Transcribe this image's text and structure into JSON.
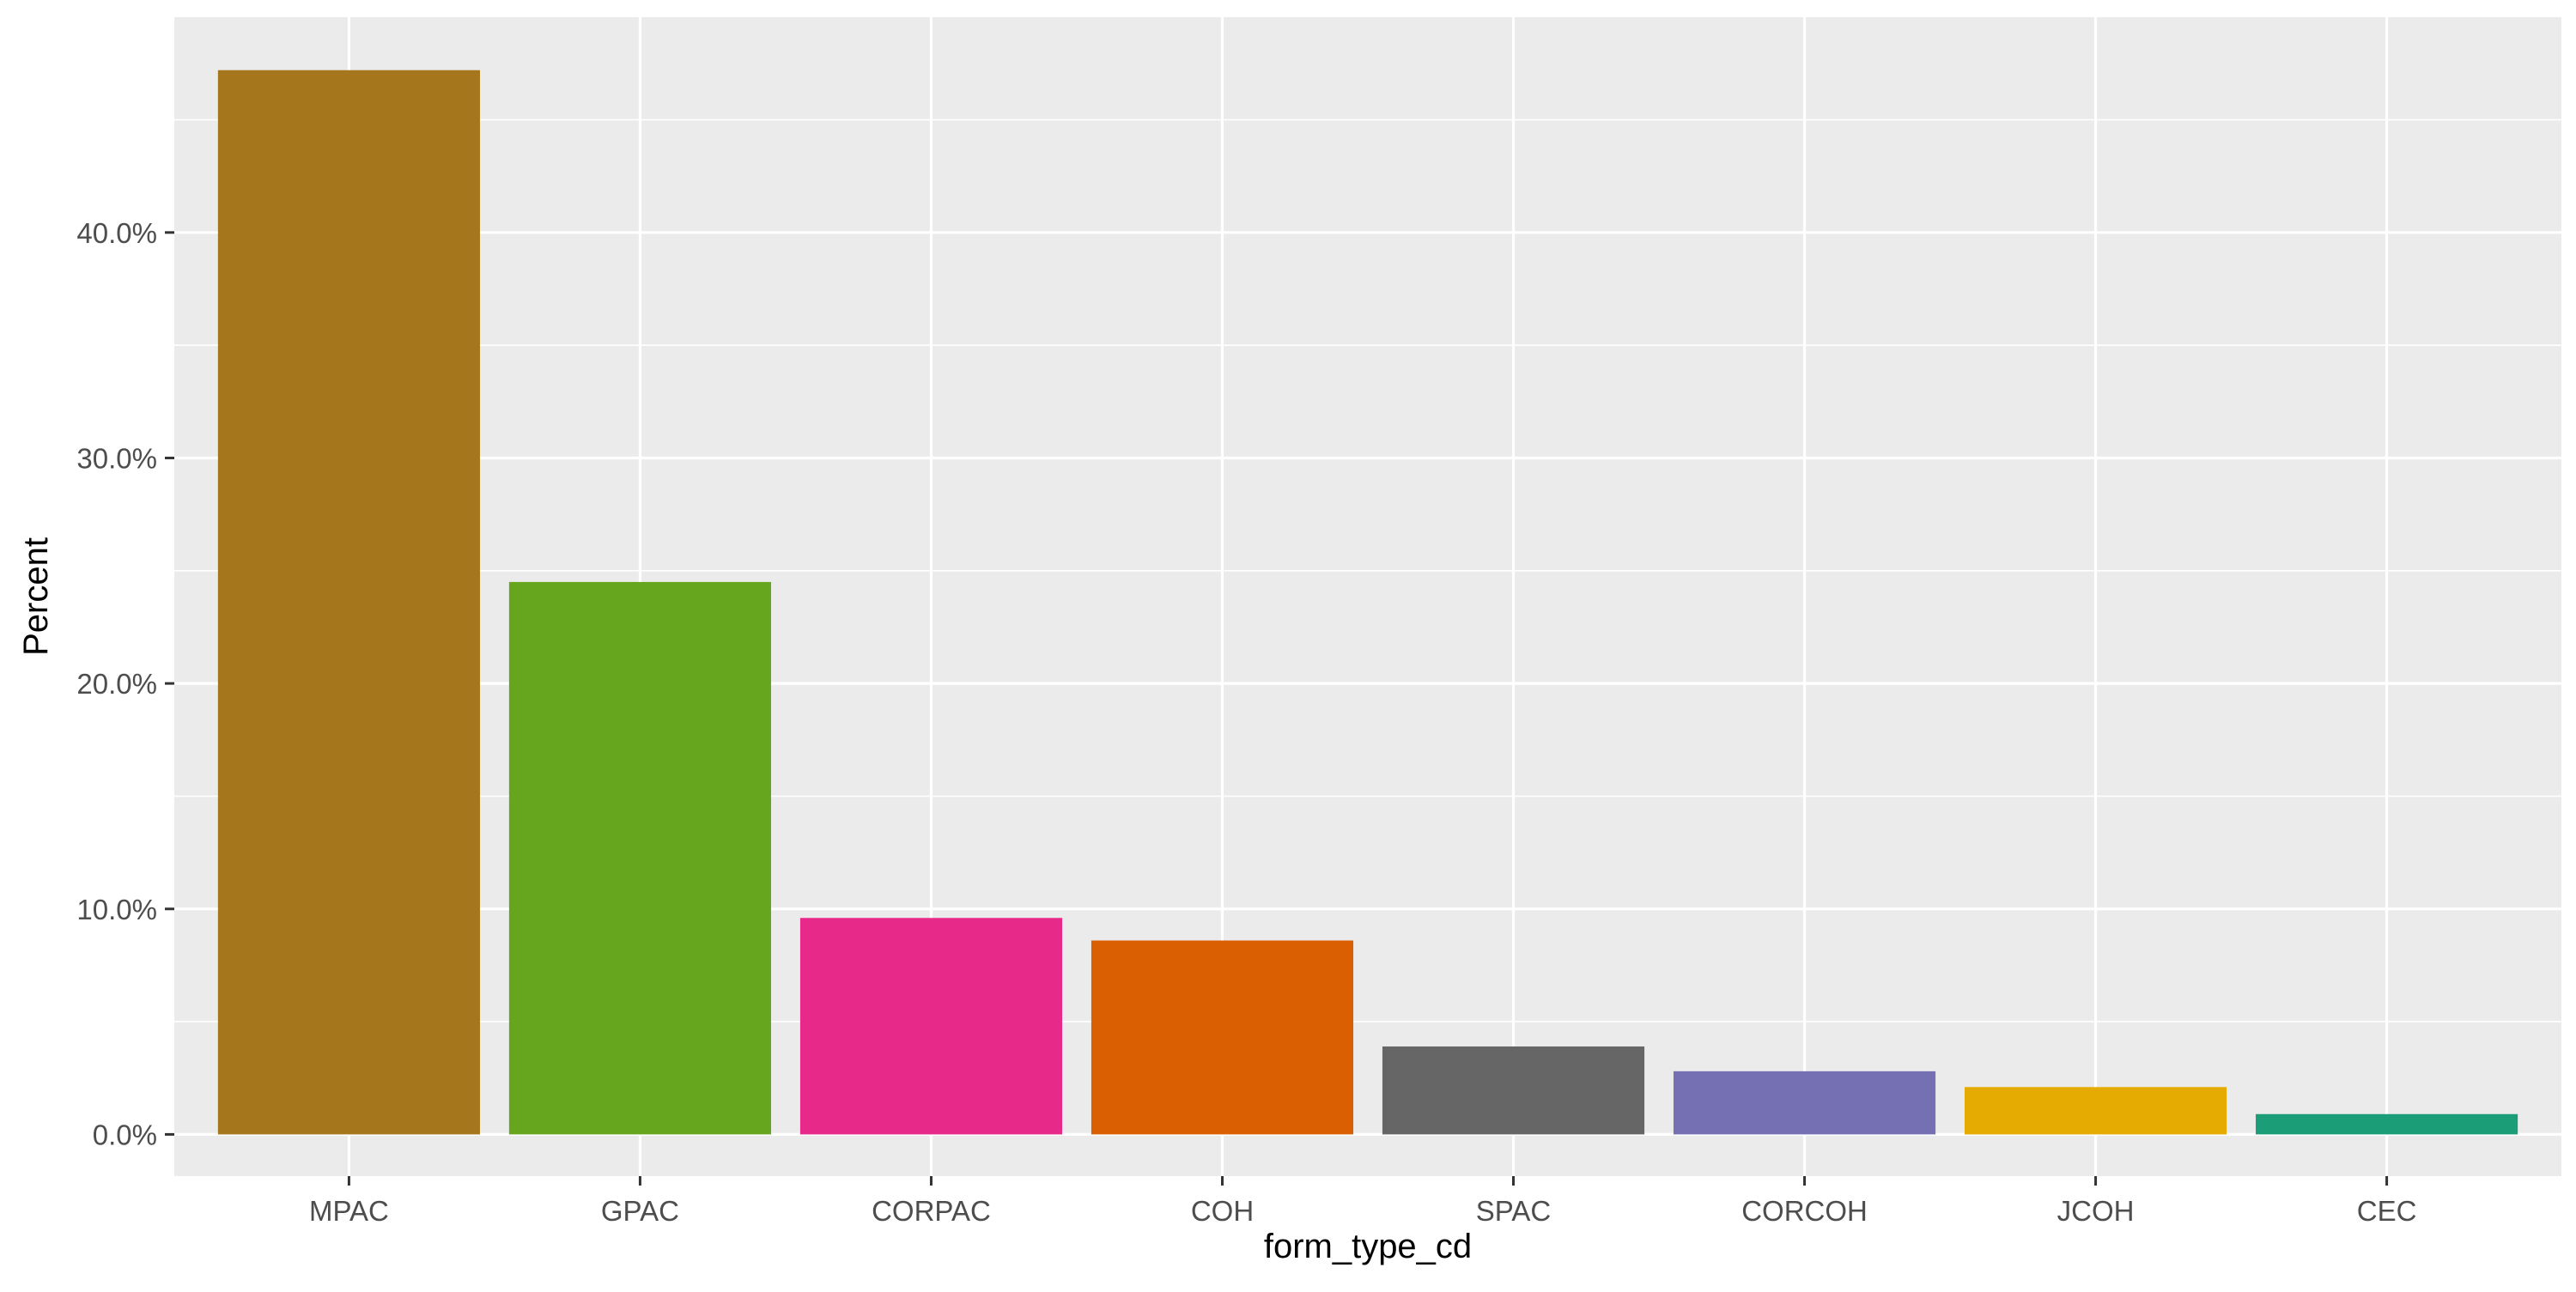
{
  "chart_data": {
    "type": "bar",
    "title": "",
    "xlabel": "form_type_cd",
    "ylabel": "Percent",
    "categories": [
      "MPAC",
      "GPAC",
      "CORPAC",
      "COH",
      "SPAC",
      "CORCOH",
      "JCOH",
      "CEC"
    ],
    "values": [
      0.472,
      0.245,
      0.096,
      0.086,
      0.039,
      0.028,
      0.021,
      0.009
    ],
    "colors": [
      "#A6761D",
      "#66A61E",
      "#E7298A",
      "#D95F02",
      "#666666",
      "#7570B3",
      "#E6AB02",
      "#1B9E77"
    ],
    "y_ticks": [
      0.0,
      0.1,
      0.2,
      0.3,
      0.4
    ],
    "y_tick_labels": [
      "0.0%",
      "10.0%",
      "20.0%",
      "30.0%",
      "40.0%"
    ],
    "ylim": [
      -0.0185,
      0.4955
    ],
    "grid": true,
    "legend": "none",
    "panel_background": "#EBEBEB",
    "grid_color": "#FFFFFF"
  }
}
